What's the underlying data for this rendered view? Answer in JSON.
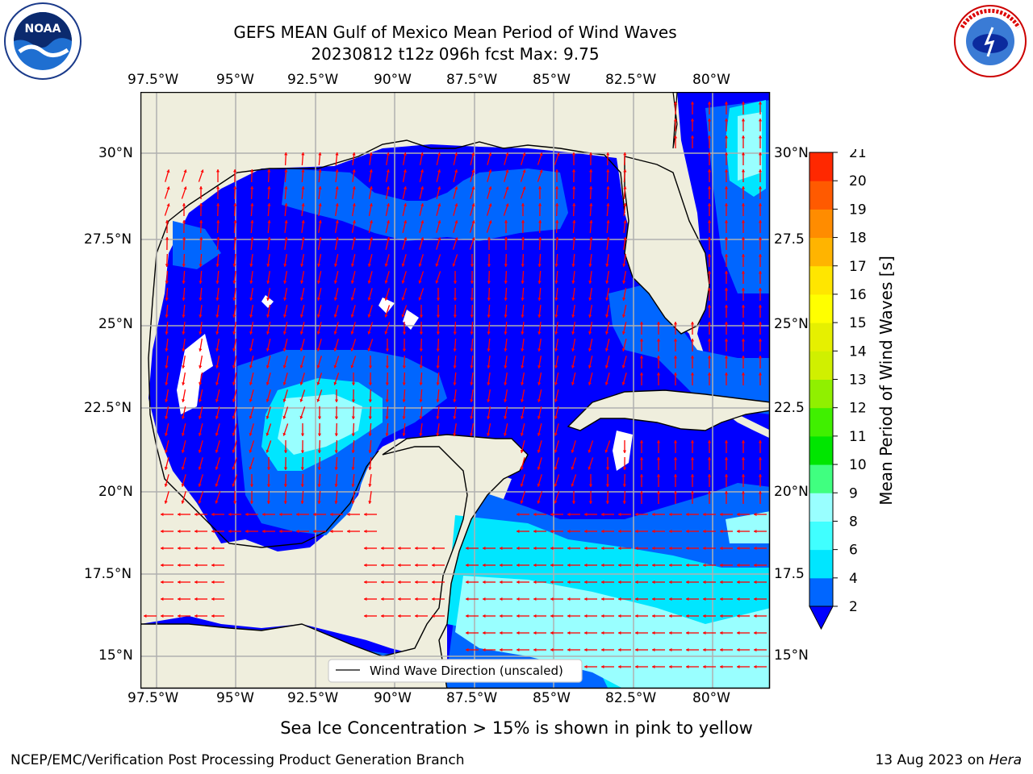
{
  "title": {
    "line1": "GEFS MEAN Gulf of Mexico Mean Period of Wind Waves",
    "line2": "20230812 t12z 096h fcst   Max: 9.75"
  },
  "axes": {
    "lon_labels": [
      "97.5°W",
      "95°W",
      "92.5°W",
      "90°W",
      "87.5°W",
      "85°W",
      "82.5°W",
      "80°W"
    ],
    "lat_labels_left": [
      "30°N",
      "27.5°N",
      "25°N",
      "22.5°N",
      "20°N",
      "17.5°N",
      "15°N"
    ],
    "lat_labels_right": [
      "30°N",
      "27.5",
      "25°N",
      "22.5",
      "20°N",
      "17.5",
      "15°N"
    ]
  },
  "legend": {
    "label": "Wind Wave Direction (unscaled)"
  },
  "colorbar": {
    "label": "Mean Period of Wind Waves [s]",
    "ticks": [
      "2",
      "4",
      "6",
      "8",
      "9",
      "10",
      "11",
      "12",
      "13",
      "14",
      "15",
      "16",
      "17",
      "18",
      "19",
      "20",
      "21"
    ],
    "colors": [
      "#0066ff",
      "#00e6ff",
      "#40ffff",
      "#99ffff",
      "#40ff80",
      "#00e600",
      "#40f000",
      "#90f000",
      "#d0f000",
      "#e6f000",
      "#ffff00",
      "#ffe600",
      "#ffb400",
      "#ff8c00",
      "#ff5a00",
      "#ff2800"
    ],
    "under_color": "#0000ff"
  },
  "map_colors": {
    "land": "#efeedd",
    "ocean_deep": "#0000ff",
    "band_2_4": "#0066ff",
    "band_4_6": "#00e6ff",
    "band_6_8": "#40ffff",
    "band_8_9": "#99ffff",
    "arrow": "#ff0000"
  },
  "logos": {
    "noaa": "NOAA",
    "nws": "NATIONAL WEATHER SERVICE"
  },
  "notes": {
    "sea_ice": "Sea Ice Concentration > 15% is shown in pink to yellow",
    "producer": "NCEP/EMC/Verification Post Processing Product Generation Branch",
    "date": "13 Aug 2023 on ",
    "machine": "Hera"
  }
}
